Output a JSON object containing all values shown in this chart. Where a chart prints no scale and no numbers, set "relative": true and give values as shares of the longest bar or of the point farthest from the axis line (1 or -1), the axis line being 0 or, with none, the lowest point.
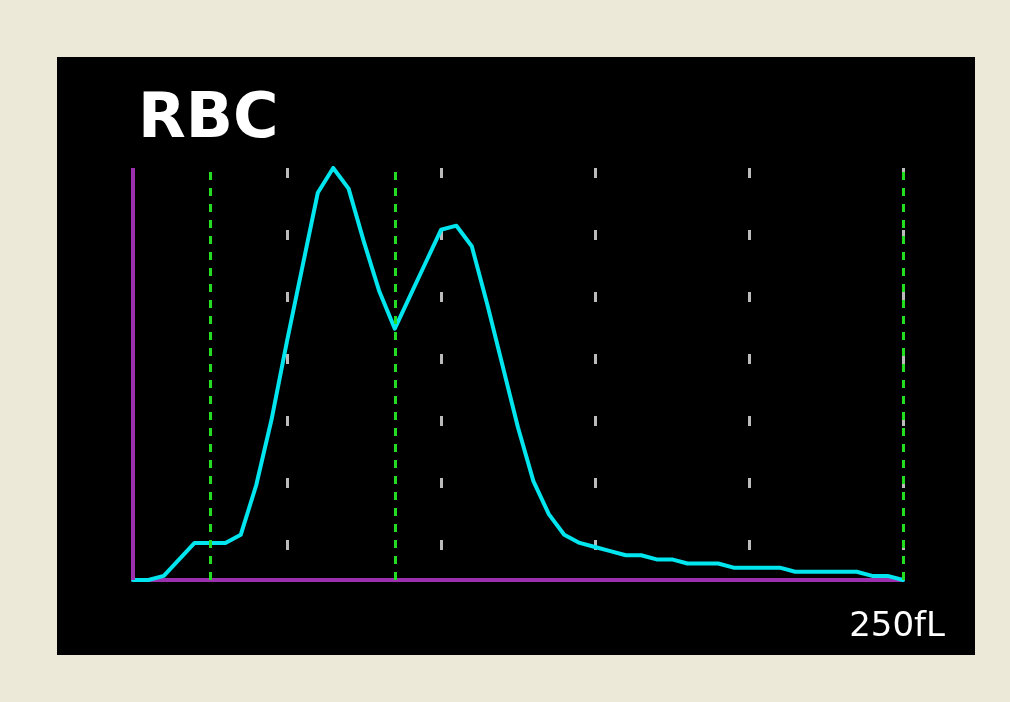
{
  "chart_data": {
    "type": "line",
    "title": "RBC",
    "relative": true,
    "categories": [
      null,
      null,
      null,
      null,
      null,
      null,
      null,
      null,
      null,
      null,
      null,
      null,
      null,
      null,
      null,
      null,
      null,
      null,
      null,
      null,
      null,
      null,
      null,
      null,
      null,
      null,
      null,
      null,
      null,
      null,
      null,
      null,
      null,
      null,
      null,
      null,
      null,
      null,
      null,
      null,
      null,
      null,
      null,
      null,
      null,
      null,
      null,
      null,
      null,
      null,
      null
    ],
    "series": [
      {
        "color": "#00e5ee",
        "values": [
          0,
          0,
          0.01,
          0.05,
          0.09,
          0.09,
          0.09,
          0.11,
          0.23,
          0.39,
          0.58,
          0.76,
          0.94,
          1,
          0.95,
          0.82,
          0.7,
          0.61,
          0.69,
          0.77,
          0.85,
          0.86,
          0.81,
          0.67,
          0.52,
          0.37,
          0.24,
          0.16,
          0.11,
          0.09,
          0.08,
          0.07,
          0.06,
          0.06,
          0.05,
          0.05,
          0.04,
          0.04,
          0.04,
          0.03,
          0.03,
          0.03,
          0.03,
          0.02,
          0.02,
          0.02,
          0.02,
          0.02,
          0.01,
          0.01,
          0
        ]
      }
    ],
    "annotations": [
      "250fL"
    ],
    "grid": "x",
    "marker": "none",
    "line_style": "solid"
  }
}
